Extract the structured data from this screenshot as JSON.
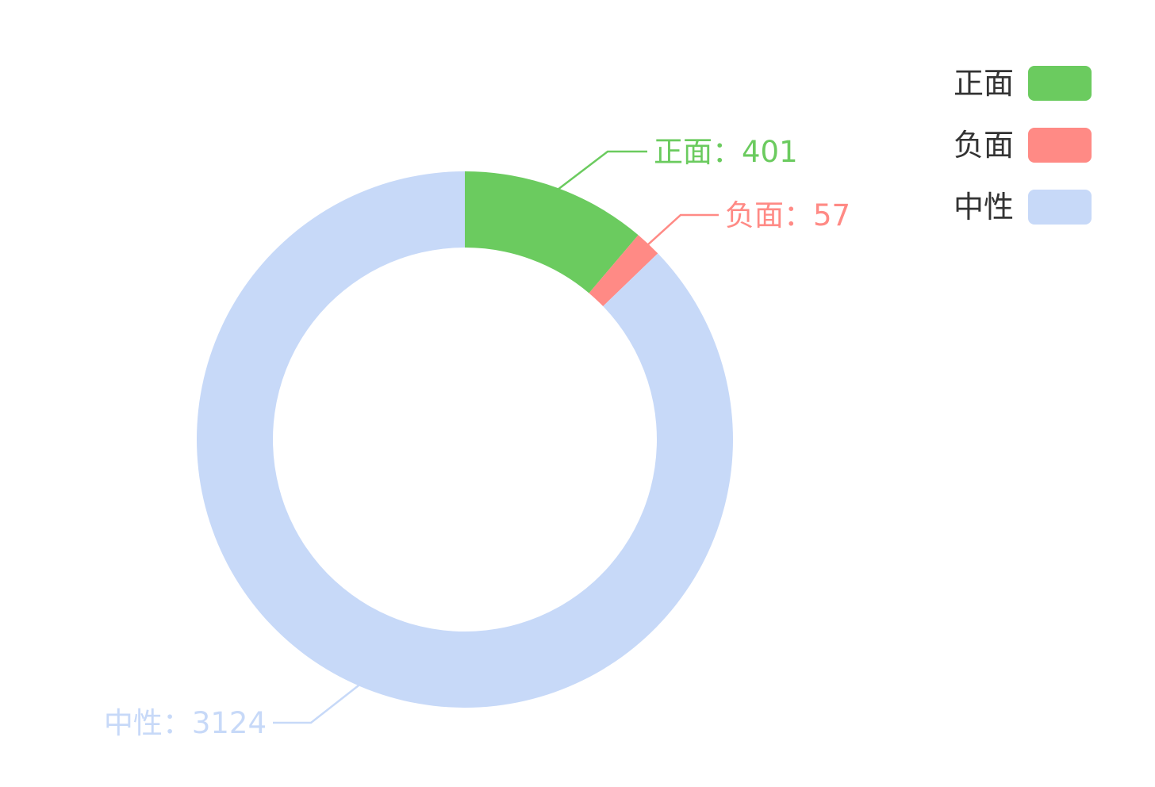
{
  "chart_data": {
    "type": "pie",
    "variant": "donut",
    "title": "",
    "categories": [
      "正面",
      "负面",
      "中性"
    ],
    "values": [
      401,
      57,
      3124
    ],
    "labels": [
      "正面：401",
      "负面：57",
      "中性：3124"
    ],
    "colors": [
      "#6bcb5f",
      "#ff8a85",
      "#c7d9f8"
    ],
    "legend": {
      "placement": "top-right",
      "items": [
        {
          "label": "正面",
          "color": "#6bcb5f"
        },
        {
          "label": "负面",
          "color": "#ff8a85"
        },
        {
          "label": "中性",
          "color": "#c7d9f8"
        }
      ]
    }
  }
}
